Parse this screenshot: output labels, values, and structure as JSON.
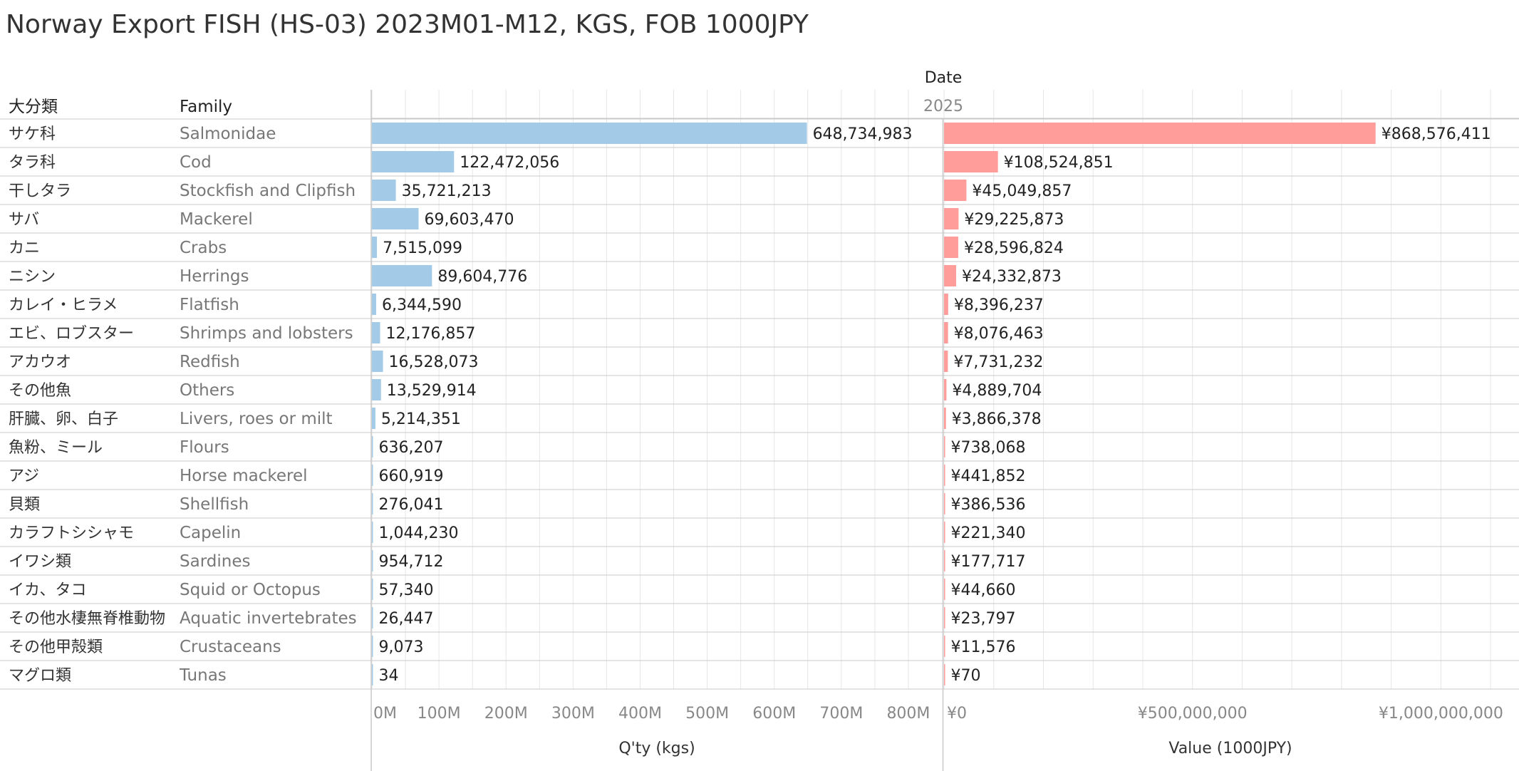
{
  "title": "Norway Export FISH (HS-03) 2023M01-M12, KGS, FOB 1000JPY",
  "header": {
    "col1": "大分類",
    "col2": "Family",
    "date_label": "Date",
    "date_value": "2025"
  },
  "axes": {
    "qty_label": "Q'ty (kgs)",
    "value_label": "Value (1000JPY)",
    "qty_ticks": [
      "0M",
      "100M",
      "200M",
      "300M",
      "400M",
      "500M",
      "600M",
      "700M",
      "800M"
    ],
    "value_ticks": [
      "¥0",
      "¥500,000,000",
      "¥1,000,000,000"
    ]
  },
  "colors": {
    "qty": "#a3cbe8",
    "value": "#ff9d9a",
    "grid": "#e6e6e6",
    "border": "#c8c8c8"
  },
  "chart_data": {
    "type": "bar",
    "categories_ja": [
      "サケ科",
      "タラ科",
      "干しタラ",
      "サバ",
      "カニ",
      "ニシン",
      "カレイ・ヒラメ",
      "エビ、ロブスター",
      "アカウオ",
      "その他魚",
      "肝臓、卵、白子",
      "魚粉、ミール",
      "アジ",
      "貝類",
      "カラフトシシャモ",
      "イワシ類",
      "イカ、タコ",
      "その他水棲無脊椎動物",
      "その他甲殻類",
      "マグロ類"
    ],
    "categories_en": [
      "Salmonidae",
      "Cod",
      "Stockfish and Clipfish",
      "Mackerel",
      "Crabs",
      "Herrings",
      "Flatfish",
      "Shrimps and lobsters",
      "Redfish",
      "Others",
      "Livers, roes or milt",
      "Flours",
      "Horse mackerel",
      "Shellfish",
      "Capelin",
      "Sardines",
      "Squid or Octopus",
      "Aquatic invertebrates",
      "Crustaceans",
      "Tunas"
    ],
    "series": [
      {
        "name": "Q'ty (kgs)",
        "values": [
          648734983,
          122472056,
          35721213,
          69603470,
          7515099,
          89604776,
          6344590,
          12176857,
          16528073,
          13529914,
          5214351,
          636207,
          660919,
          276041,
          1044230,
          954712,
          57340,
          26447,
          9073,
          34
        ],
        "labels": [
          "648,734,983",
          "122,472,056",
          "35,721,213",
          "69,603,470",
          "7,515,099",
          "89,604,776",
          "6,344,590",
          "12,176,857",
          "16,528,073",
          "13,529,914",
          "5,214,351",
          "636,207",
          "660,919",
          "276,041",
          "1,044,230",
          "954,712",
          "57,340",
          "26,447",
          "9,073",
          "34"
        ],
        "xlim": [
          0,
          850000000
        ]
      },
      {
        "name": "Value (1000JPY)",
        "values": [
          868576411,
          108524851,
          45049857,
          29225873,
          28596824,
          24332873,
          8396237,
          8076463,
          7731232,
          4889704,
          3866378,
          738068,
          441852,
          386536,
          221340,
          177717,
          44660,
          23797,
          11576,
          70
        ],
        "labels": [
          "¥868,576,411",
          "¥108,524,851",
          "¥45,049,857",
          "¥29,225,873",
          "¥28,596,824",
          "¥24,332,873",
          "¥8,396,237",
          "¥8,076,463",
          "¥7,731,232",
          "¥4,889,704",
          "¥3,866,378",
          "¥738,068",
          "¥441,852",
          "¥386,536",
          "¥221,340",
          "¥177,717",
          "¥44,660",
          "¥23,797",
          "¥11,576",
          "¥70"
        ],
        "xlim": [
          0,
          1150000000
        ]
      }
    ]
  }
}
